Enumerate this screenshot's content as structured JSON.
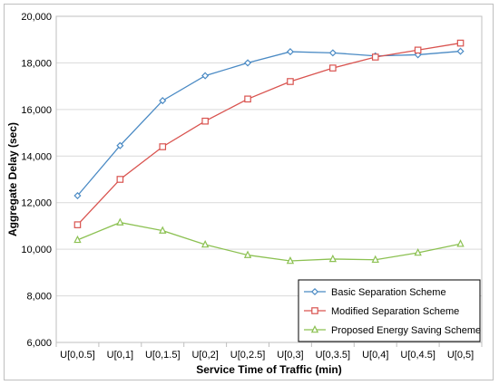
{
  "chart_data": {
    "type": "line",
    "title": "",
    "xlabel": "Service Time of Traffic (min)",
    "ylabel": "Aggregate Delay (sec)",
    "ylim": [
      6000,
      20000
    ],
    "y_ticks": [
      "6,000",
      "8,000",
      "10,000",
      "12,000",
      "14,000",
      "16,000",
      "18,000",
      "20,000"
    ],
    "y_tick_values": [
      6000,
      8000,
      10000,
      12000,
      14000,
      16000,
      18000,
      20000
    ],
    "categories": [
      "U[0,0.5]",
      "U[0,1]",
      "U[0,1.5]",
      "U[0,2]",
      "U[0,2.5]",
      "U[0,3]",
      "U[0,3.5]",
      "U[0,4]",
      "U[0,4.5]",
      "U[0,5]"
    ],
    "grid": "horizontal",
    "legend_position": "bottom-right",
    "series": [
      {
        "name": "Basic Separation Scheme",
        "color": "#4a8ac4",
        "marker": "diamond",
        "values": [
          12300,
          14450,
          16380,
          17450,
          18000,
          18480,
          18430,
          18300,
          18350,
          18500
        ]
      },
      {
        "name": "Modified Separation Scheme",
        "color": "#d9534f",
        "marker": "square",
        "values": [
          11050,
          13000,
          14400,
          15500,
          16450,
          17200,
          17780,
          18250,
          18550,
          18850
        ]
      },
      {
        "name": "Proposed Energy Saving Scheme",
        "color": "#8cc152",
        "marker": "triangle",
        "values": [
          10400,
          11150,
          10800,
          10200,
          9750,
          9500,
          9580,
          9550,
          9850,
          10230
        ]
      }
    ]
  }
}
